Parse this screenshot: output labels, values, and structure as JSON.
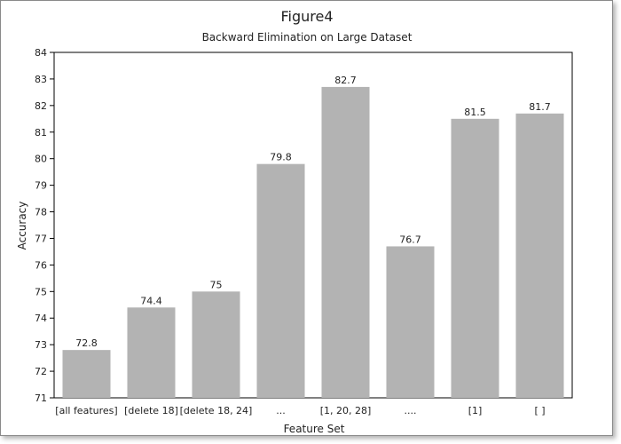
{
  "chart_data": {
    "type": "bar",
    "title": "Figure4",
    "subtitle": "Backward Elimination on Large Dataset",
    "xlabel": "Feature Set",
    "ylabel": "Accuracy",
    "categories": [
      "[all features]",
      "[delete 18]",
      "[delete 18, 24]",
      "...",
      "[1, 20, 28]",
      "....",
      "[1]",
      "[ ]"
    ],
    "values": [
      72.8,
      74.4,
      75,
      79.8,
      82.7,
      76.7,
      81.5,
      81.7
    ],
    "data_labels": [
      "72.8",
      "74.4",
      "75",
      "79.8",
      "82.7",
      "76.7",
      "81.5",
      "81.7"
    ],
    "ylim": [
      71,
      84
    ],
    "yticks": [
      71,
      72,
      73,
      74,
      75,
      76,
      77,
      78,
      79,
      80,
      81,
      82,
      83,
      84
    ],
    "grid": false,
    "legend": "none",
    "bar_color": "#b3b3b3",
    "axis_color": "#000000",
    "frame_color": "#8a8a8a"
  }
}
